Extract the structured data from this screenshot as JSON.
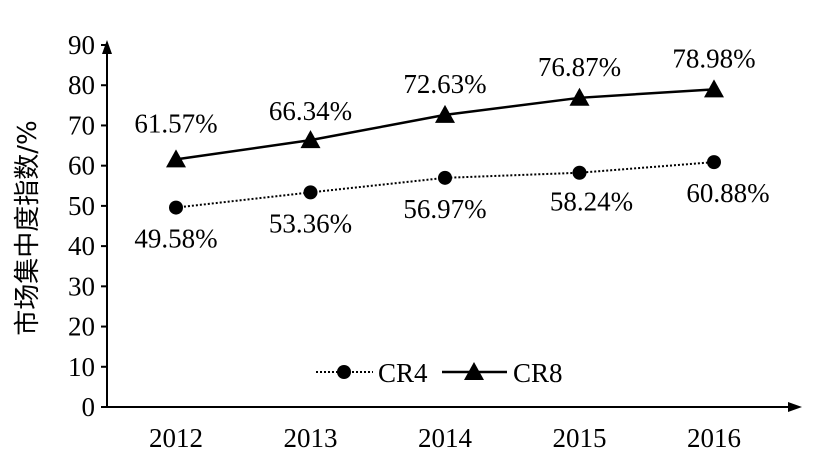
{
  "chart_data": {
    "type": "line",
    "title": "",
    "xlabel": "",
    "ylabel": "市场集中度指数/%",
    "categories": [
      "2012",
      "2013",
      "2014",
      "2015",
      "2016"
    ],
    "ylim": [
      0,
      90
    ],
    "yticks": [
      0,
      10,
      20,
      30,
      40,
      50,
      60,
      70,
      80,
      90
    ],
    "ytick_labels": [
      "0",
      "10",
      "20",
      "30",
      "40",
      "50",
      "60",
      "70",
      "80",
      "90"
    ],
    "grid": false,
    "legend_position": "bottom-center",
    "series": [
      {
        "name": "CR4",
        "values": [
          49.58,
          53.36,
          56.97,
          58.24,
          60.88
        ],
        "labels": [
          "49.58%",
          "53.36%",
          "56.97%",
          "58.24%",
          "60.88%"
        ],
        "marker": "circle",
        "line_style": "dotted",
        "color": "#000000"
      },
      {
        "name": "CR8",
        "values": [
          61.57,
          66.34,
          72.63,
          76.87,
          78.98
        ],
        "labels": [
          "61.57%",
          "66.34%",
          "72.63%",
          "76.87%",
          "78.98%"
        ],
        "marker": "triangle",
        "line_style": "solid",
        "color": "#000000"
      }
    ]
  }
}
